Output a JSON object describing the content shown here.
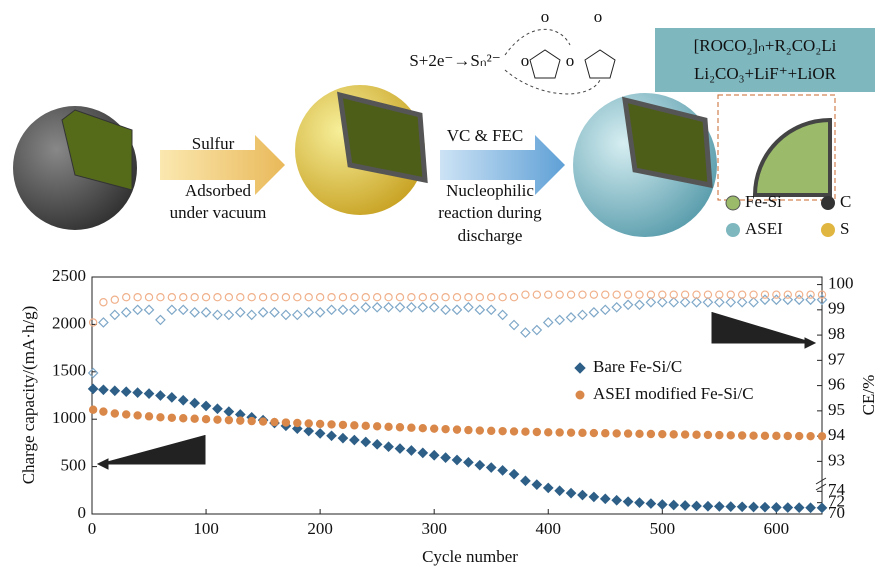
{
  "schematic": {
    "reaction": "S+2e⁻→Sₙ²⁻",
    "molecule_labels": [
      "o",
      "o",
      "o",
      "o"
    ],
    "step1_top": "Sulfur",
    "step1_bottom": [
      "Adsorbed",
      "under vacuum"
    ],
    "step2_top": "VC & FEC",
    "step2_bottom": [
      "Nucleophilic",
      "reaction during",
      "discharge"
    ],
    "sei_box": [
      "[ROCO₂]ₙ+R₂CO₂Li",
      "Li₂CO₃+LiF⁺+LiOR"
    ],
    "legend": [
      "Fe-Si",
      "C",
      "ASEI",
      "S"
    ]
  },
  "chart_data": {
    "type": "scatter",
    "xlabel": "Cycle number",
    "ylabel": "Charge capacity/(mA·h/g)",
    "y2label": "CE/%",
    "xlim": [
      0,
      640
    ],
    "xticks": [
      0,
      100,
      200,
      300,
      400,
      500,
      600
    ],
    "ylim": [
      0,
      2500
    ],
    "yticks": [
      0,
      500,
      1000,
      1500,
      2000,
      2500
    ],
    "y2_segments": [
      {
        "ylim": [
          70,
          76
        ],
        "yticks": [
          70,
          72,
          74
        ]
      },
      {
        "ylim": [
          92.5,
          100.3
        ],
        "yticks": [
          93,
          94,
          95,
          96,
          97,
          98,
          99,
          100
        ]
      }
    ],
    "x": [
      1,
      10,
      20,
      30,
      40,
      50,
      60,
      70,
      80,
      90,
      100,
      110,
      120,
      130,
      140,
      150,
      160,
      170,
      180,
      190,
      200,
      210,
      220,
      230,
      240,
      250,
      260,
      270,
      280,
      290,
      300,
      310,
      320,
      330,
      340,
      350,
      360,
      370,
      380,
      390,
      400,
      410,
      420,
      430,
      440,
      450,
      460,
      470,
      480,
      490,
      500,
      510,
      520,
      530,
      540,
      550,
      560,
      570,
      580,
      590,
      600,
      610,
      620,
      630,
      640
    ],
    "series": [
      {
        "name": "Bare Fe-Si/C",
        "color": "#2e5f87",
        "marker": "diamond",
        "filled": true,
        "values": [
          1320,
          1310,
          1300,
          1290,
          1280,
          1270,
          1250,
          1230,
          1200,
          1170,
          1140,
          1110,
          1080,
          1050,
          1020,
          990,
          960,
          930,
          900,
          875,
          850,
          825,
          800,
          780,
          760,
          735,
          710,
          690,
          670,
          645,
          620,
          595,
          570,
          545,
          515,
          490,
          460,
          420,
          350,
          310,
          275,
          245,
          220,
          200,
          180,
          160,
          145,
          130,
          120,
          110,
          100,
          95,
          90,
          85,
          82,
          80,
          78,
          76,
          74,
          72,
          70,
          68,
          67,
          66,
          65
        ]
      },
      {
        "name": "ASEI modified Fe-Si/C",
        "color": "#d9884a",
        "marker": "circle",
        "filled": true,
        "values": [
          1100,
          1080,
          1060,
          1050,
          1040,
          1030,
          1020,
          1015,
          1010,
          1005,
          1000,
          995,
          990,
          985,
          980,
          975,
          970,
          965,
          960,
          955,
          950,
          945,
          940,
          935,
          930,
          925,
          920,
          915,
          910,
          905,
          900,
          895,
          890,
          885,
          880,
          877,
          874,
          871,
          868,
          865,
          862,
          860,
          858,
          856,
          854,
          852,
          850,
          848,
          846,
          844,
          842,
          840,
          838,
          836,
          834,
          832,
          830,
          828,
          826,
          825,
          824,
          823,
          822,
          821,
          820
        ]
      },
      {
        "color": "#7fa8c8",
        "marker": "diamond",
        "filled": false,
        "axis": "y2",
        "values": [
          96.5,
          98.5,
          98.8,
          98.9,
          99,
          99,
          98.6,
          99,
          99,
          98.9,
          98.9,
          98.8,
          98.8,
          98.9,
          98.8,
          98.9,
          98.9,
          98.8,
          98.8,
          98.9,
          98.9,
          99,
          99,
          99,
          99.1,
          99.1,
          99.1,
          99.1,
          99.1,
          99.1,
          99.1,
          99,
          99,
          99.1,
          99,
          99,
          98.8,
          98.4,
          98.1,
          98.2,
          98.5,
          98.6,
          98.7,
          98.8,
          98.9,
          99,
          99.1,
          99.2,
          99.2,
          99.3,
          99.3,
          99.3,
          99.3,
          99.3,
          99.3,
          99.3,
          99.3,
          99.3,
          99.3,
          99.4,
          99.4,
          99.4,
          99.4,
          99.4,
          99.4
        ]
      },
      {
        "color": "#f0b08a",
        "marker": "circle",
        "filled": false,
        "axis": "y2",
        "values": [
          98.5,
          99.3,
          99.4,
          99.5,
          99.5,
          99.5,
          99.5,
          99.5,
          99.5,
          99.5,
          99.5,
          99.5,
          99.5,
          99.5,
          99.5,
          99.5,
          99.5,
          99.5,
          99.5,
          99.5,
          99.5,
          99.5,
          99.5,
          99.5,
          99.5,
          99.5,
          99.5,
          99.5,
          99.5,
          99.5,
          99.5,
          99.5,
          99.5,
          99.5,
          99.5,
          99.5,
          99.5,
          99.5,
          99.6,
          99.6,
          99.6,
          99.6,
          99.6,
          99.6,
          99.6,
          99.6,
          99.6,
          99.6,
          99.6,
          99.6,
          99.6,
          99.6,
          99.6,
          99.6,
          99.6,
          99.6,
          99.6,
          99.6,
          99.6,
          99.6,
          99.6,
          99.6,
          99.6,
          99.6,
          99.6
        ]
      }
    ],
    "legend": "center-right"
  }
}
